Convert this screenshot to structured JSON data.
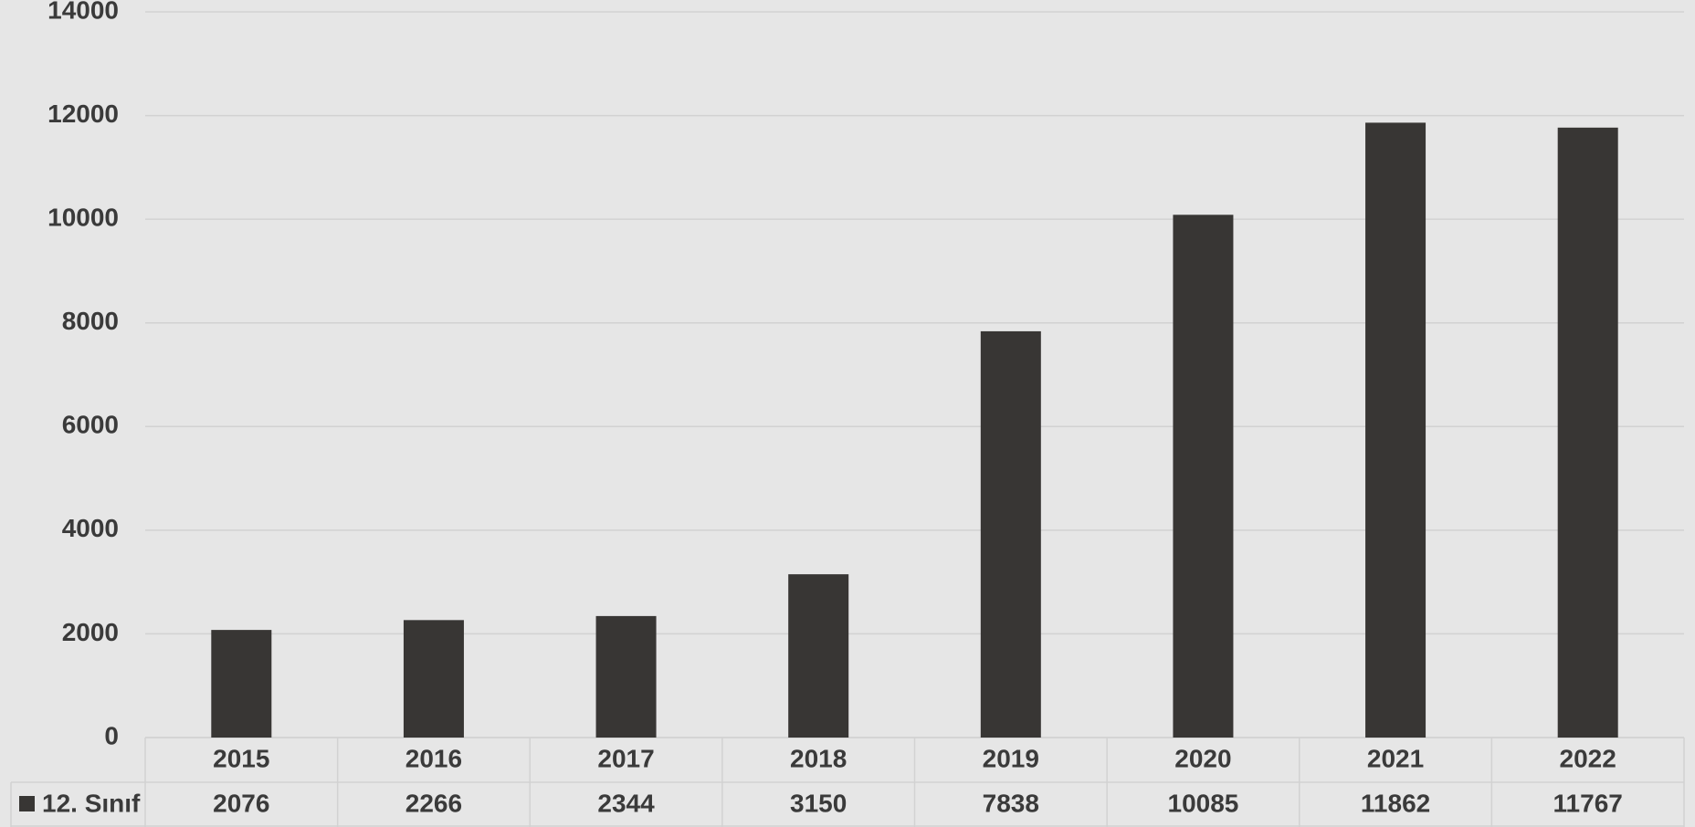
{
  "chart_data": {
    "type": "bar",
    "categories": [
      "2015",
      "2016",
      "2017",
      "2018",
      "2019",
      "2020",
      "2021",
      "2022"
    ],
    "series": [
      {
        "name": "12. Sınıf",
        "color": "#383634",
        "values": [
          2076,
          2266,
          2344,
          3150,
          7838,
          10085,
          11862,
          11767
        ]
      }
    ],
    "ylim": [
      0,
      14000
    ],
    "yticks": [
      0,
      2000,
      4000,
      6000,
      8000,
      10000,
      12000,
      14000
    ],
    "grid": true,
    "legend": "bottom-left"
  }
}
